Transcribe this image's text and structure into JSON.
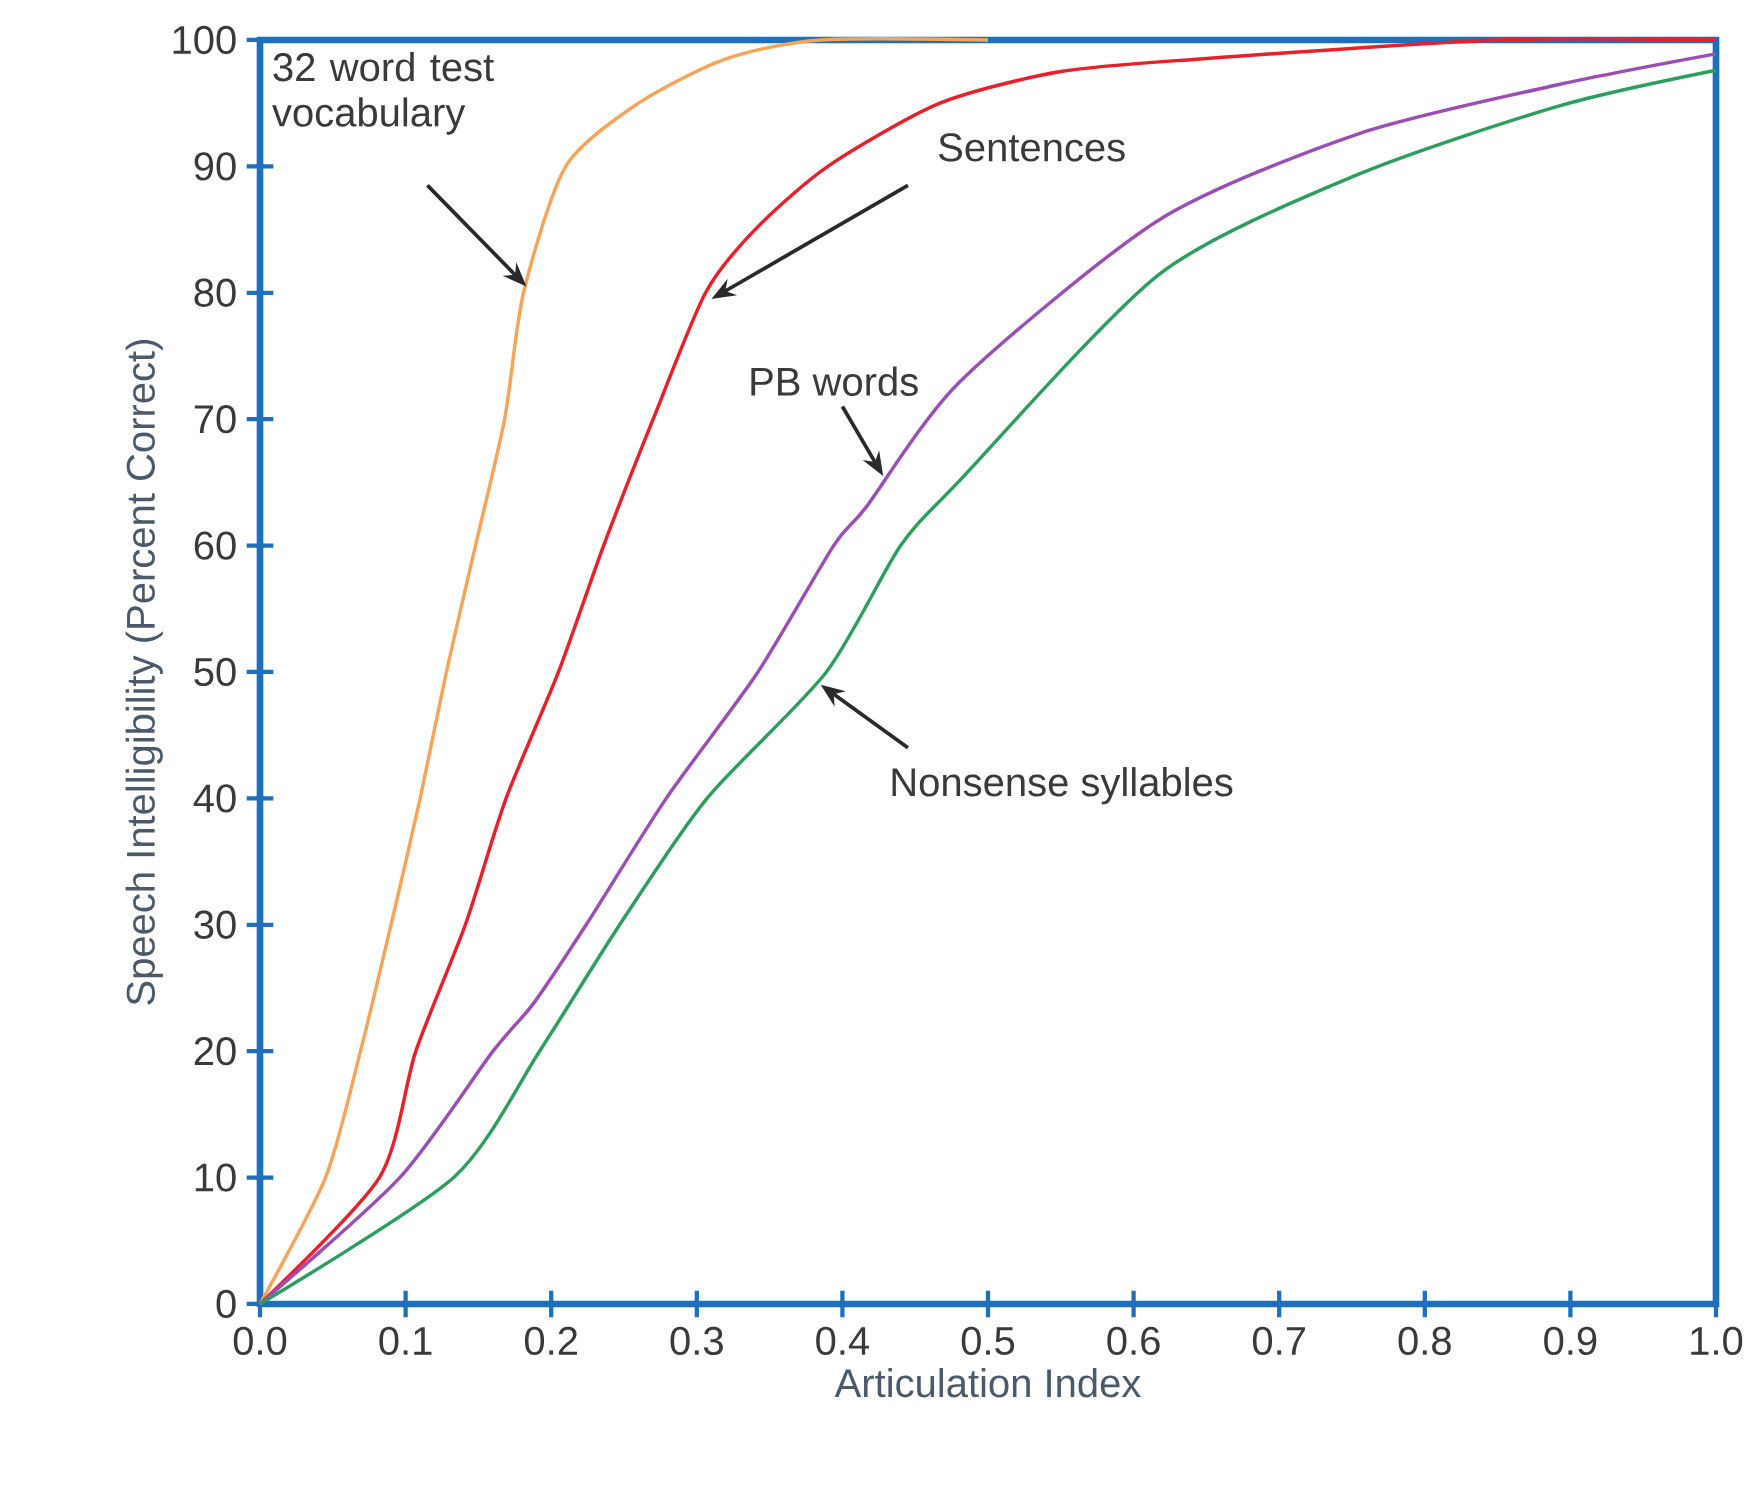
{
  "chart_data": {
    "type": "line",
    "xlabel": "Articulation Index",
    "ylabel": "Speech Intelligibility (Percent Correct)",
    "xlim": [
      0,
      1
    ],
    "ylim": [
      0,
      100
    ],
    "xticks": [
      {
        "value": 0,
        "label": "0.0"
      },
      0.1,
      0.2,
      0.3,
      0.4,
      0.5,
      0.6,
      0.7,
      0.8,
      0.9,
      {
        "value": 1,
        "label": "1.0"
      }
    ],
    "yticks": [
      0,
      10,
      20,
      30,
      40,
      50,
      60,
      70,
      80,
      90,
      100
    ],
    "legend": false,
    "grid": false,
    "marker": "none",
    "line_style": "solid",
    "series": [
      {
        "name": "32 word test vocabulary",
        "color": "#f5a55a",
        "x": [
          0,
          0.045,
          0.069,
          0.09,
          0.11,
          0.128,
          0.148,
          0.168,
          0.181,
          0.21,
          0.26,
          0.32,
          0.385,
          0.5
        ],
        "values": [
          0,
          10,
          20,
          30,
          40,
          50,
          60,
          70,
          80,
          90,
          95,
          98.5,
          100,
          100
        ]
      },
      {
        "name": "Sentences",
        "color": "#e8202a",
        "x": [
          0,
          0.082,
          0.107,
          0.141,
          0.169,
          0.205,
          0.236,
          0.27,
          0.306,
          0.34,
          0.39,
          0.467,
          0.55,
          0.646,
          0.85,
          1
        ],
        "values": [
          0,
          10,
          20,
          30,
          40,
          50,
          60,
          70,
          80,
          85,
          90,
          95,
          97.5,
          98.5,
          100,
          100
        ]
      },
      {
        "name": "PB words",
        "color": "#9b4fb5",
        "x": [
          0,
          0.096,
          0.16,
          0.188,
          0.224,
          0.279,
          0.342,
          0.394,
          0.416,
          0.481,
          0.618,
          0.755,
          0.893,
          1
        ],
        "values": [
          0,
          10,
          20,
          23.8,
          30,
          40,
          50,
          60,
          63,
          73,
          85.8,
          92.6,
          96.5,
          98.9
        ]
      },
      {
        "name": "Nonsense syllables",
        "color": "#2e9e5e",
        "x": [
          0,
          0.133,
          0.192,
          0.247,
          0.307,
          0.389,
          0.44,
          0.481,
          0.618,
          0.755,
          0.893,
          1
        ],
        "values": [
          0,
          10,
          20,
          30,
          40,
          50,
          60,
          65.2,
          81.5,
          89.4,
          94.8,
          97.6
        ]
      }
    ]
  }
}
